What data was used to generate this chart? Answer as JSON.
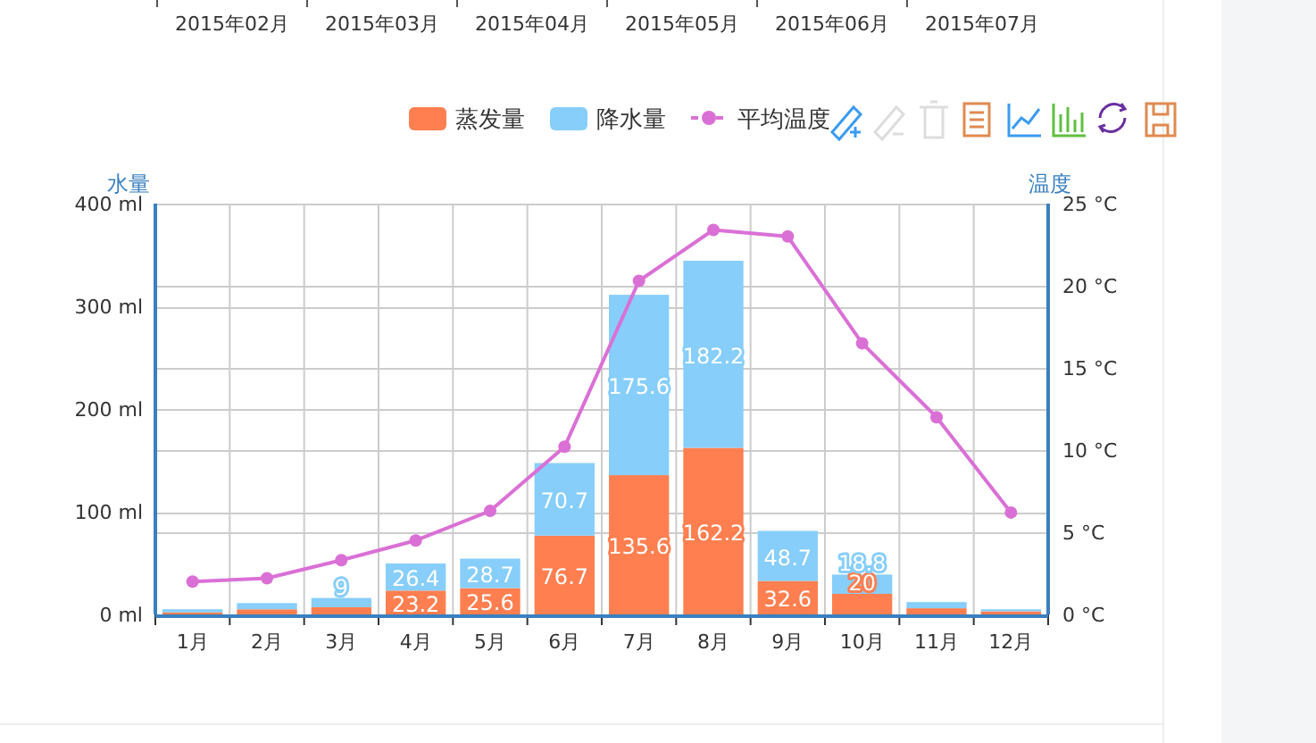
{
  "chart_data": {
    "type": "bar",
    "stacked": true,
    "annotations": [
      "2015年02月",
      "2015年03月",
      "2015年04月",
      "2015年05月",
      "2015年06月",
      "2015年07月"
    ],
    "categories": [
      "1月",
      "2月",
      "3月",
      "4月",
      "5月",
      "6月",
      "7月",
      "8月",
      "9月",
      "10月",
      "11月",
      "12月"
    ],
    "series": [
      {
        "name": "蒸发量",
        "color": "#ff7f50",
        "values": [
          2,
          5,
          7,
          23.2,
          25.6,
          76.7,
          135.6,
          162.2,
          32.6,
          20.0,
          6,
          3
        ],
        "value_labels": [
          null,
          null,
          null,
          "23.2",
          "25.6",
          "76.7",
          "135.6",
          "162.2",
          "32.6",
          "20",
          null,
          null
        ]
      },
      {
        "name": "降水量",
        "color": "#87cefa",
        "values": [
          3,
          6,
          9,
          26.4,
          28.7,
          70.7,
          175.6,
          182.2,
          48.7,
          18.8,
          6,
          2
        ],
        "value_labels": [
          null,
          null,
          "9",
          "26.4",
          "28.7",
          "70.7",
          "175.6",
          "182.2",
          "48.7",
          "18.8",
          null,
          null
        ]
      },
      {
        "name": "平均温度",
        "type": "line",
        "axis": "y2",
        "color": "#da70d6",
        "marker": "circle",
        "values": [
          2.0,
          2.2,
          3.3,
          4.5,
          6.3,
          10.2,
          20.3,
          23.4,
          23.0,
          16.5,
          12.0,
          6.2
        ]
      }
    ],
    "ylabel": "水量",
    "y2label": "温度",
    "ylim": [
      0,
      400
    ],
    "yticks": [
      {
        "value": 0,
        "label": "0 ml"
      },
      {
        "value": 100,
        "label": "100 ml"
      },
      {
        "value": 200,
        "label": "200 ml"
      },
      {
        "value": 300,
        "label": "300 ml"
      },
      {
        "value": 400,
        "label": "400 ml"
      }
    ],
    "y2lim": [
      0,
      25
    ],
    "y2ticks": [
      {
        "value": 0,
        "label": "0 °C"
      },
      {
        "value": 5,
        "label": "5 °C"
      },
      {
        "value": 10,
        "label": "10 °C"
      },
      {
        "value": 15,
        "label": "15 °C"
      },
      {
        "value": 20,
        "label": "20 °C"
      },
      {
        "value": 25,
        "label": "25 °C"
      }
    ],
    "grid": true,
    "legend": "top right"
  }
}
